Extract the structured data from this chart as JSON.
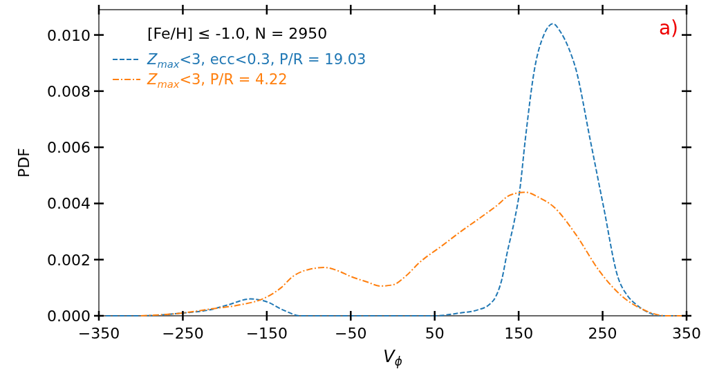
{
  "chart_data": {
    "type": "line",
    "xlabel": "V$_{ϕ}$",
    "ylabel": "PDF",
    "legend_title": "[Fe/H] ≤ -1.0, N = 2950",
    "legend": "top left",
    "grid": false,
    "annotations": [
      "a)"
    ],
    "xlim": [
      -350,
      350
    ],
    "ylim": [
      0,
      0.0109
    ],
    "xticks": [
      {
        "value": -350,
        "label": "−350"
      },
      {
        "value": -250,
        "label": "−250"
      },
      {
        "value": -150,
        "label": "−150"
      },
      {
        "value": -50,
        "label": "−50"
      },
      50,
      150,
      250,
      350
    ],
    "yticks": [
      {
        "value": 0,
        "label": "0.000"
      },
      {
        "value": 0.002,
        "label": "0.002"
      },
      {
        "value": 0.004,
        "label": "0.004"
      },
      {
        "value": 0.006,
        "label": "0.006"
      },
      {
        "value": 0.008,
        "label": "0.008"
      },
      {
        "value": 0.01,
        "label": "0.010"
      }
    ],
    "series": [
      {
        "name": "Z$_{max}$<3, ecc<0.3, P/R = 19.03",
        "color": "#1f77b4",
        "line_style": "dashed",
        "x": [
          -350,
          -300,
          -250,
          -220,
          -195,
          -170,
          -150,
          -130,
          -110,
          -90,
          50,
          80,
          100,
          115,
          123,
          130,
          136,
          145,
          151,
          158,
          169,
          180,
          191,
          200,
          210,
          218,
          235,
          251,
          268,
          280,
          290,
          306,
          320,
          350
        ],
        "values": [
          0,
          0,
          0.0001,
          0.0002,
          0.0004,
          0.0006,
          0.0005,
          0.0002,
          0,
          0,
          0,
          0.0001,
          0.0002,
          0.0004,
          0.0007,
          0.0013,
          0.0022,
          0.0034,
          0.0044,
          0.0063,
          0.0088,
          0.01,
          0.0104,
          0.0101,
          0.0095,
          0.0088,
          0.0063,
          0.0039,
          0.0014,
          0.0007,
          0.0004,
          0.0001,
          0,
          0
        ]
      },
      {
        "name": "Z$_{max}$<3, P/R = 4.22",
        "color": "#ff7f0e",
        "line_style": "dashdot",
        "x": [
          -300,
          -250,
          -215,
          -180,
          -155,
          -133,
          -119,
          -100,
          -81,
          -65,
          -50,
          -30,
          -15,
          0,
          15,
          32,
          59,
          81,
          100,
          123,
          140,
          158,
          175,
          191,
          218,
          246,
          273,
          300,
          325,
          350
        ],
        "values": [
          0,
          0.0001,
          0.00025,
          0.0004,
          0.0006,
          0.001,
          0.0014,
          0.00165,
          0.00172,
          0.0016,
          0.0014,
          0.0012,
          0.00106,
          0.0011,
          0.0014,
          0.0019,
          0.0025,
          0.003,
          0.0034,
          0.0039,
          0.0043,
          0.0044,
          0.0042,
          0.0039,
          0.0029,
          0.0016,
          0.0007,
          0.0002,
          0,
          0
        ]
      }
    ]
  }
}
